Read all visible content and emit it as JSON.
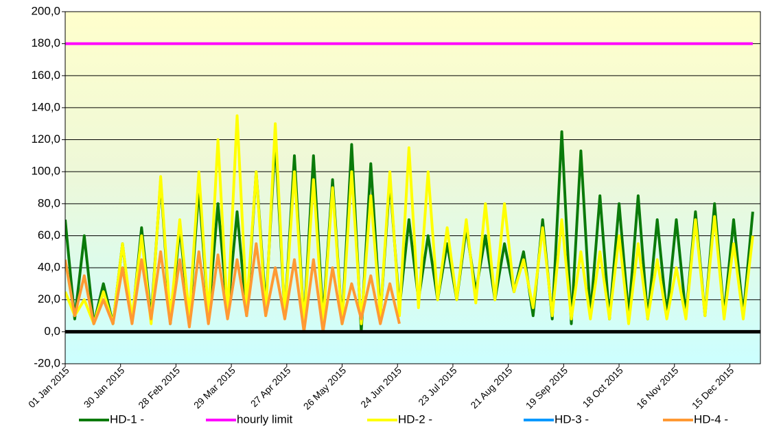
{
  "chart_data": {
    "type": "line",
    "x": [
      "01 Jan 2015",
      "06 Jan 2015",
      "11 Jan 2015",
      "16 Jan 2015",
      "21 Jan 2015",
      "26 Jan 2015",
      "31 Jan 2015",
      "05 Feb 2015",
      "10 Feb 2015",
      "15 Feb 2015",
      "20 Feb 2015",
      "25 Feb 2015",
      "02 Mar 2015",
      "07 Mar 2015",
      "12 Mar 2015",
      "17 Mar 2015",
      "22 Mar 2015",
      "27 Mar 2015",
      "01 Apr 2015",
      "06 Apr 2015",
      "11 Apr 2015",
      "16 Apr 2015",
      "21 Apr 2015",
      "26 Apr 2015",
      "01 May 2015",
      "06 May 2015",
      "11 May 2015",
      "16 May 2015",
      "21 May 2015",
      "26 May 2015",
      "31 May 2015",
      "05 Jun 2015",
      "10 Jun 2015",
      "15 Jun 2015",
      "20 Jun 2015",
      "25 Jun 2015",
      "30 Jun 2015",
      "05 Jul 2015",
      "10 Jul 2015",
      "15 Jul 2015",
      "20 Jul 2015",
      "25 Jul 2015",
      "30 Jul 2015",
      "04 Aug 2015",
      "09 Aug 2015",
      "14 Aug 2015",
      "19 Aug 2015",
      "24 Aug 2015",
      "29 Aug 2015",
      "03 Sep 2015",
      "08 Sep 2015",
      "13 Sep 2015",
      "18 Sep 2015",
      "23 Sep 2015",
      "28 Sep 2015",
      "03 Oct 2015",
      "08 Oct 2015",
      "13 Oct 2015",
      "18 Oct 2015",
      "23 Oct 2015",
      "28 Oct 2015",
      "02 Nov 2015",
      "07 Nov 2015",
      "12 Nov 2015",
      "17 Nov 2015",
      "22 Nov 2015",
      "27 Nov 2015",
      "02 Dec 2015",
      "07 Dec 2015",
      "12 Dec 2015",
      "17 Dec 2015",
      "22 Dec 2015",
      "27 Dec 2015"
    ],
    "series": [
      {
        "name": "HD-1 -",
        "color": "#0a7a0a",
        "values": [
          70,
          8,
          60,
          5,
          30,
          5,
          55,
          6,
          65,
          8,
          95,
          5,
          65,
          8,
          90,
          10,
          80,
          12,
          75,
          10,
          100,
          15,
          120,
          10,
          110,
          5,
          110,
          8,
          95,
          5,
          117,
          0,
          105,
          10,
          95,
          15,
          70,
          20,
          60,
          20,
          55,
          20,
          65,
          25,
          60,
          20,
          55,
          25,
          50,
          10,
          70,
          8,
          125,
          5,
          113,
          10,
          85,
          8,
          80,
          10,
          85,
          8,
          70,
          10,
          70,
          10,
          75,
          10,
          80,
          10,
          70,
          10,
          75
        ]
      },
      {
        "name": "hourly limit",
        "color": "#ff00ff",
        "values": [
          180,
          180,
          180,
          180,
          180,
          180,
          180,
          180,
          180,
          180,
          180,
          180,
          180,
          180,
          180,
          180,
          180,
          180,
          180,
          180,
          180,
          180,
          180,
          180,
          180,
          180,
          180,
          180,
          180,
          180,
          180,
          180,
          180,
          180,
          180,
          180,
          180,
          180,
          180,
          180,
          180,
          180,
          180,
          180,
          180,
          180,
          180,
          180,
          180,
          180,
          180,
          180,
          180,
          180,
          180,
          180,
          180,
          180,
          180,
          180,
          180,
          180,
          180,
          180,
          180,
          180,
          180,
          180,
          180,
          180,
          180,
          180,
          180
        ]
      },
      {
        "name": "HD-2 -",
        "color": "#ffff00",
        "values": [
          25,
          10,
          20,
          5,
          25,
          5,
          55,
          8,
          60,
          5,
          97,
          8,
          70,
          10,
          100,
          10,
          120,
          10,
          135,
          15,
          100,
          10,
          130,
          10,
          100,
          5,
          95,
          5,
          90,
          5,
          100,
          5,
          85,
          10,
          100,
          10,
          115,
          15,
          100,
          20,
          65,
          20,
          70,
          18,
          80,
          20,
          80,
          25,
          45,
          15,
          65,
          10,
          70,
          8,
          50,
          8,
          50,
          8,
          60,
          5,
          55,
          8,
          45,
          8,
          40,
          8,
          70,
          10,
          72,
          8,
          55,
          8,
          60
        ]
      },
      {
        "name": "HD-3 -",
        "color": "#0099ff",
        "values": [
          null,
          null,
          null,
          null,
          null,
          null,
          null,
          null,
          null,
          null,
          null,
          null,
          null,
          null,
          null,
          null,
          null,
          null,
          null,
          null,
          null,
          null,
          null,
          null,
          null,
          null,
          null,
          null,
          null,
          null,
          null,
          null,
          null,
          null,
          null,
          null,
          null,
          null,
          null,
          null,
          null,
          null,
          null,
          null,
          null,
          null,
          null,
          null,
          null,
          null,
          null,
          null,
          null,
          null,
          null,
          null,
          null,
          null,
          null,
          null,
          null,
          null,
          null,
          null,
          null,
          null,
          null,
          null,
          null,
          null,
          null,
          null,
          null
        ]
      },
      {
        "name": "HD-4 -",
        "color": "#ff9933",
        "values": [
          45,
          10,
          35,
          5,
          20,
          5,
          40,
          5,
          45,
          8,
          50,
          5,
          45,
          3,
          50,
          5,
          48,
          8,
          45,
          10,
          55,
          10,
          40,
          8,
          45,
          0,
          45,
          0,
          40,
          5,
          30,
          8,
          35,
          5,
          30,
          5,
          null,
          null,
          null,
          null,
          null,
          null,
          null,
          null,
          null,
          null,
          null,
          null,
          null,
          null,
          null,
          null,
          null,
          null,
          null,
          null,
          null,
          null,
          null,
          null,
          null,
          null,
          null,
          null,
          null,
          null,
          null,
          null,
          null,
          null,
          null,
          null,
          null
        ]
      }
    ],
    "xlim": [
      "01 Jan 2015",
      "31 Dec 2015"
    ],
    "xticks": [
      "01 Jan 2015",
      "30 Jan 2015",
      "28 Feb 2015",
      "29 Mar 2015",
      "27 Apr 2015",
      "26 May 2015",
      "24 Jun 2015",
      "23 Jul 2015",
      "21 Aug 2015",
      "19 Sep 2015",
      "18 Oct 2015",
      "16 Nov 2015",
      "15 Dec 2015"
    ],
    "ylim": [
      -20,
      200
    ],
    "yticks": [
      {
        "value": -20,
        "label": "-20,0"
      },
      {
        "value": 0,
        "label": "0,0"
      },
      {
        "value": 20,
        "label": "20,0"
      },
      {
        "value": 40,
        "label": "40,0"
      },
      {
        "value": 60,
        "label": "60,0"
      },
      {
        "value": 80,
        "label": "80,0"
      },
      {
        "value": 100,
        "label": "100,0"
      },
      {
        "value": 120,
        "label": "120,0"
      },
      {
        "value": 140,
        "label": "140,0"
      },
      {
        "value": 160,
        "label": "160,0"
      },
      {
        "value": 180,
        "label": "180,0"
      },
      {
        "value": 200,
        "label": "200,0"
      }
    ],
    "grid": true,
    "legend": "bottom"
  }
}
